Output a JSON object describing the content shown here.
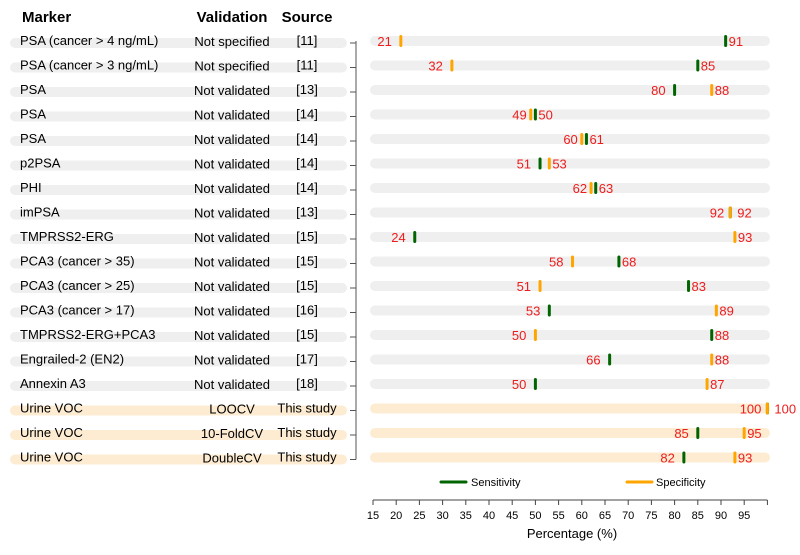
{
  "chart_data": {
    "type": "dot-range",
    "columns": {
      "marker": "Marker",
      "validation": "Validation",
      "source": "Source"
    },
    "xlabel": "Percentage (%)",
    "xlim": [
      15,
      100
    ],
    "xticks": [
      15,
      20,
      25,
      30,
      35,
      40,
      45,
      50,
      55,
      60,
      65,
      70,
      75,
      80,
      85,
      90,
      95
    ],
    "legend": [
      {
        "name": "Sensitivity",
        "color": "#006400"
      },
      {
        "name": "Specificity",
        "color": "#ffa500"
      }
    ],
    "legend_placement": "bottom",
    "colors": {
      "label": "#ee1c1c",
      "band": "#efefef",
      "highlight_band": "#fdecd2"
    },
    "rows": [
      {
        "marker": "PSA (cancer > 4 ng/mL)",
        "validation": "Not specified",
        "source": "[11]",
        "sensitivity": 91,
        "specificity": 21,
        "highlight": false
      },
      {
        "marker": "PSA (cancer > 3 ng/mL)",
        "validation": "Not specified",
        "source": "[11]",
        "sensitivity": 85,
        "specificity": 32,
        "highlight": false
      },
      {
        "marker": "PSA",
        "validation": "Not validated",
        "source": "[13]",
        "sensitivity": 80,
        "specificity": 88,
        "highlight": false
      },
      {
        "marker": "PSA",
        "validation": "Not validated",
        "source": "[14]",
        "sensitivity": 50,
        "specificity": 49,
        "highlight": false
      },
      {
        "marker": "PSA",
        "validation": "Not validated",
        "source": "[14]",
        "sensitivity": 61,
        "specificity": 60,
        "highlight": false
      },
      {
        "marker": "p2PSA",
        "validation": "Not validated",
        "source": "[14]",
        "sensitivity": 51,
        "specificity": 53,
        "highlight": false
      },
      {
        "marker": "PHI",
        "validation": "Not validated",
        "source": "[14]",
        "sensitivity": 63,
        "specificity": 62,
        "highlight": false
      },
      {
        "marker": "imPSA",
        "validation": "Not validated",
        "source": "[13]",
        "sensitivity": 92,
        "specificity": 92,
        "highlight": false
      },
      {
        "marker": "TMPRSS2-ERG",
        "validation": "Not validated",
        "source": "[15]",
        "sensitivity": 24,
        "specificity": 93,
        "highlight": false
      },
      {
        "marker": "PCA3 (cancer > 35)",
        "validation": "Not validated",
        "source": "[15]",
        "sensitivity": 68,
        "specificity": 58,
        "highlight": false
      },
      {
        "marker": "PCA3 (cancer > 25)",
        "validation": "Not validated",
        "source": "[15]",
        "sensitivity": 83,
        "specificity": 51,
        "highlight": false
      },
      {
        "marker": "PCA3 (cancer > 17)",
        "validation": "Not validated",
        "source": "[16]",
        "sensitivity": 53,
        "specificity": 89,
        "highlight": false
      },
      {
        "marker": "TMPRSS2-ERG+PCA3",
        "validation": "Not validated",
        "source": "[15]",
        "sensitivity": 88,
        "specificity": 50,
        "highlight": false
      },
      {
        "marker": "Engrailed-2 (EN2)",
        "validation": "Not validated",
        "source": "[17]",
        "sensitivity": 66,
        "specificity": 88,
        "highlight": false
      },
      {
        "marker": "Annexin A3",
        "validation": "Not validated",
        "source": "[18]",
        "sensitivity": 50,
        "specificity": 87,
        "highlight": false
      },
      {
        "marker": "Urine VOC",
        "validation": "LOOCV",
        "source": "This study",
        "sensitivity": 100,
        "specificity": 100,
        "highlight": true
      },
      {
        "marker": "Urine VOC",
        "validation": "10-FoldCV",
        "source": "This study",
        "sensitivity": 85,
        "specificity": 95,
        "highlight": true
      },
      {
        "marker": "Urine VOC",
        "validation": "DoubleCV",
        "source": "This study",
        "sensitivity": 82,
        "specificity": 93,
        "highlight": true
      }
    ]
  }
}
